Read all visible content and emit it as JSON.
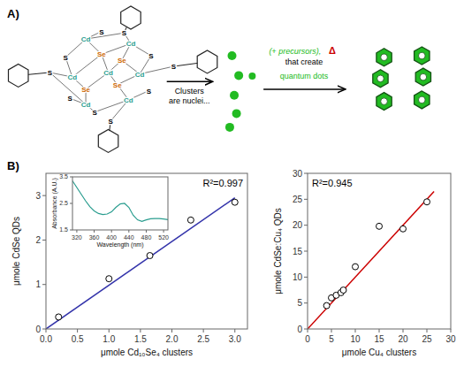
{
  "chart_data": [
    {
      "type": "diagram",
      "title": "A)",
      "categories": [
        "Cd",
        "Se",
        "S"
      ],
      "colors": [
        "#2a9d8f",
        "#cc6600",
        "#000000"
      ],
      "color": "#22bb22",
      "annotations": [
        "Clusters",
        "are nuclei...",
        "(+ precursors),",
        "Δ",
        "that create",
        "quantum dots"
      ]
    },
    {
      "type": "scatter",
      "title": "B)",
      "xlabel": "μmole Cd₁₀Se₄ clusters",
      "ylabel": "μmole CdSe QDs",
      "xlim": [
        0,
        3.2
      ],
      "ylim": [
        0,
        3.5
      ],
      "xticks": [
        {
          "value": 0,
          "label": "0.0"
        },
        0.5,
        {
          "value": 1,
          "label": "1.0"
        },
        1.5,
        {
          "value": 2,
          "label": "2.0"
        },
        2.5,
        {
          "value": 3,
          "label": "3.0"
        }
      ],
      "yticks": [
        0,
        1,
        2,
        3
      ],
      "annotations": [
        "R²=0.997"
      ],
      "series": [
        {
          "type": "scatter",
          "marker": "circle",
          "color": "#000000",
          "x": [
            0.2,
            1.0,
            1.65,
            2.3,
            3.0
          ],
          "values": [
            0.27,
            1.13,
            1.65,
            2.45,
            2.85
          ]
        },
        {
          "type": "line",
          "line_style": "solid",
          "color": "#3333aa",
          "x": [
            0.0,
            3.0
          ],
          "values": [
            0.0,
            2.95
          ]
        }
      ]
    },
    {
      "type": "line",
      "color": "#2a9d8f",
      "xlabel": "Wavelength (nm)",
      "ylabel": "Absorbance (A.U.)",
      "xlim": [
        310,
        530
      ],
      "ylim": [
        1.5,
        3.5
      ],
      "xticks": [
        320,
        360,
        400,
        440,
        480,
        520
      ],
      "yticks": [
        1.5,
        2.5,
        3.5
      ],
      "x": [
        310,
        320,
        330,
        340,
        350,
        360,
        370,
        380,
        390,
        400,
        410,
        420,
        430,
        440,
        450,
        460,
        470,
        480,
        490,
        500,
        510,
        520,
        530
      ],
      "values": [
        3.35,
        3.1,
        2.85,
        2.6,
        2.38,
        2.22,
        2.12,
        2.08,
        2.1,
        2.18,
        2.35,
        2.48,
        2.5,
        2.35,
        2.05,
        1.88,
        1.82,
        1.88,
        1.92,
        1.93,
        1.93,
        1.91,
        1.89
      ]
    },
    {
      "type": "scatter",
      "xlabel": "μmole Cu₄ clusters",
      "ylabel": "μmole CdSe:Cu₄ QDs",
      "xlim": [
        0,
        30
      ],
      "ylim": [
        0,
        30
      ],
      "xticks": [
        0,
        5,
        10,
        15,
        20,
        25,
        30
      ],
      "yticks": [
        0,
        5,
        10,
        15,
        20,
        25,
        30
      ],
      "annotations": [
        "R²=0.945"
      ],
      "series": [
        {
          "type": "scatter",
          "marker": "circle",
          "color": "#000000",
          "x": [
            4.0,
            5.0,
            6.0,
            7.0,
            7.5,
            10.0,
            15.0,
            20.0,
            25.0
          ],
          "values": [
            4.5,
            6.0,
            6.5,
            7.0,
            7.5,
            12.0,
            19.8,
            19.3,
            24.5
          ]
        },
        {
          "type": "line",
          "line_style": "solid",
          "color": "#cc0000",
          "x": [
            0,
            26.5
          ],
          "values": [
            0,
            26.5
          ]
        }
      ]
    }
  ]
}
